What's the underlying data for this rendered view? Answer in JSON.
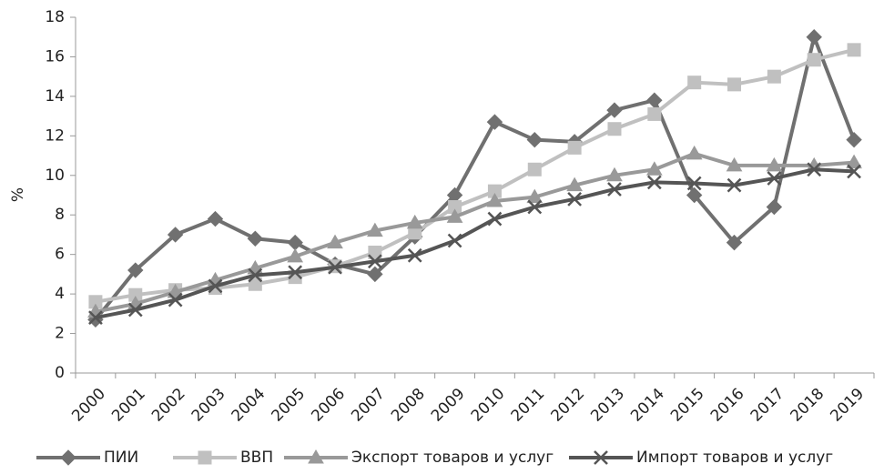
{
  "chart_data": {
    "type": "line",
    "ylabel": "%",
    "categories": [
      "2000",
      "2001",
      "2002",
      "2003",
      "2004",
      "2005",
      "2006",
      "2007",
      "2008",
      "2009",
      "2010",
      "2011",
      "2012",
      "2013",
      "2014",
      "2015",
      "2016",
      "2017",
      "2018",
      "2019"
    ],
    "series": [
      {
        "name": "ПИИ",
        "color": "#707070",
        "marker": "diamond",
        "values": [
          2.7,
          5.2,
          7.0,
          7.8,
          6.8,
          6.6,
          5.5,
          5.0,
          6.9,
          9.0,
          12.7,
          11.8,
          11.7,
          13.3,
          13.8,
          9.0,
          6.6,
          8.4,
          17.0,
          11.8
        ]
      },
      {
        "name": "ВВП",
        "color": "#c0c0c0",
        "marker": "square",
        "values": [
          3.6,
          3.95,
          4.2,
          4.3,
          4.5,
          4.85,
          5.4,
          6.1,
          7.1,
          8.4,
          9.2,
          10.3,
          11.4,
          12.35,
          13.1,
          14.7,
          14.6,
          15.0,
          15.85,
          16.35
        ]
      },
      {
        "name": "Экспорт товаров и услуг",
        "color": "#999999",
        "marker": "triangle",
        "values": [
          3.1,
          3.5,
          4.1,
          4.7,
          5.3,
          5.9,
          6.6,
          7.2,
          7.6,
          7.9,
          8.7,
          8.9,
          9.5,
          10.0,
          10.3,
          11.1,
          10.5,
          10.5,
          10.5,
          10.65
        ]
      },
      {
        "name": "Импорт товаров и услуг",
        "color": "#555555",
        "marker": "x",
        "values": [
          2.8,
          3.2,
          3.7,
          4.4,
          4.95,
          5.1,
          5.35,
          5.65,
          5.95,
          6.7,
          7.8,
          8.4,
          8.8,
          9.3,
          9.65,
          9.6,
          9.5,
          9.85,
          10.3,
          10.2
        ]
      }
    ],
    "ylim": [
      0,
      18
    ],
    "yticks": [
      0,
      2,
      4,
      6,
      8,
      10,
      12,
      14,
      16,
      18
    ],
    "grid": false,
    "legend": "bottom"
  }
}
